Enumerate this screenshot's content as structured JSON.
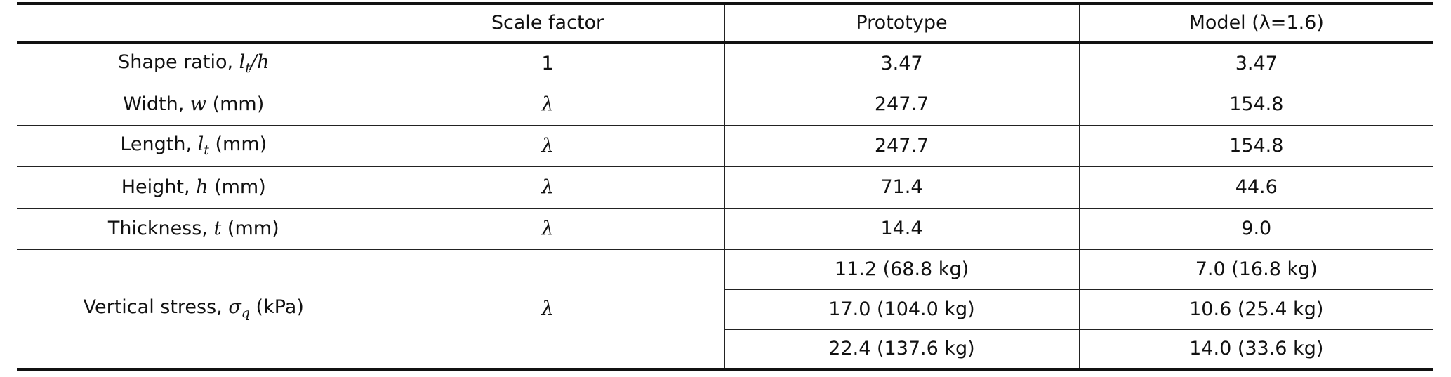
{
  "table": {
    "header": [
      "Scale factor",
      "Prototype",
      "Model (λ=1.6)"
    ],
    "rows": [
      {
        "label": [
          {
            "text": "Shape ratio, "
          },
          {
            "math": "l"
          },
          {
            "sub": "t"
          },
          {
            "math": "/h"
          }
        ],
        "scale": "1",
        "prototype": [
          "3.47"
        ],
        "model": [
          "3.47"
        ]
      },
      {
        "label": [
          {
            "text": "Width, "
          },
          {
            "math": "w"
          },
          {
            "text": " (mm)"
          }
        ],
        "scale": "λ",
        "prototype": [
          "247.7"
        ],
        "model": [
          "154.8"
        ]
      },
      {
        "label": [
          {
            "text": "Length, "
          },
          {
            "math": "l"
          },
          {
            "sub": "t"
          },
          {
            "text": " (mm)"
          }
        ],
        "scale": "λ",
        "prototype": [
          "247.7"
        ],
        "model": [
          "154.8"
        ]
      },
      {
        "label": [
          {
            "text": "Height, "
          },
          {
            "math": "h"
          },
          {
            "text": " (mm)"
          }
        ],
        "scale": "λ",
        "prototype": [
          "71.4"
        ],
        "model": [
          "44.6"
        ]
      },
      {
        "label": [
          {
            "text": "Thickness, "
          },
          {
            "math": "t"
          },
          {
            "text": " (mm)"
          }
        ],
        "scale": "λ",
        "prototype": [
          "14.4"
        ],
        "model": [
          "9.0"
        ]
      },
      {
        "label": [
          {
            "text": "Vertical stress, "
          },
          {
            "math": "σ"
          },
          {
            "sub": "q"
          },
          {
            "text": " (kPa)"
          }
        ],
        "scale": "λ",
        "prototype": [
          "11.2 (68.8 kg)",
          "17.0 (104.0 kg)",
          "22.4 (137.6 kg)"
        ],
        "model": [
          "7.0 (16.8 kg)",
          "10.6 (25.4 kg)",
          "14.0 (33.6 kg)"
        ]
      }
    ]
  }
}
